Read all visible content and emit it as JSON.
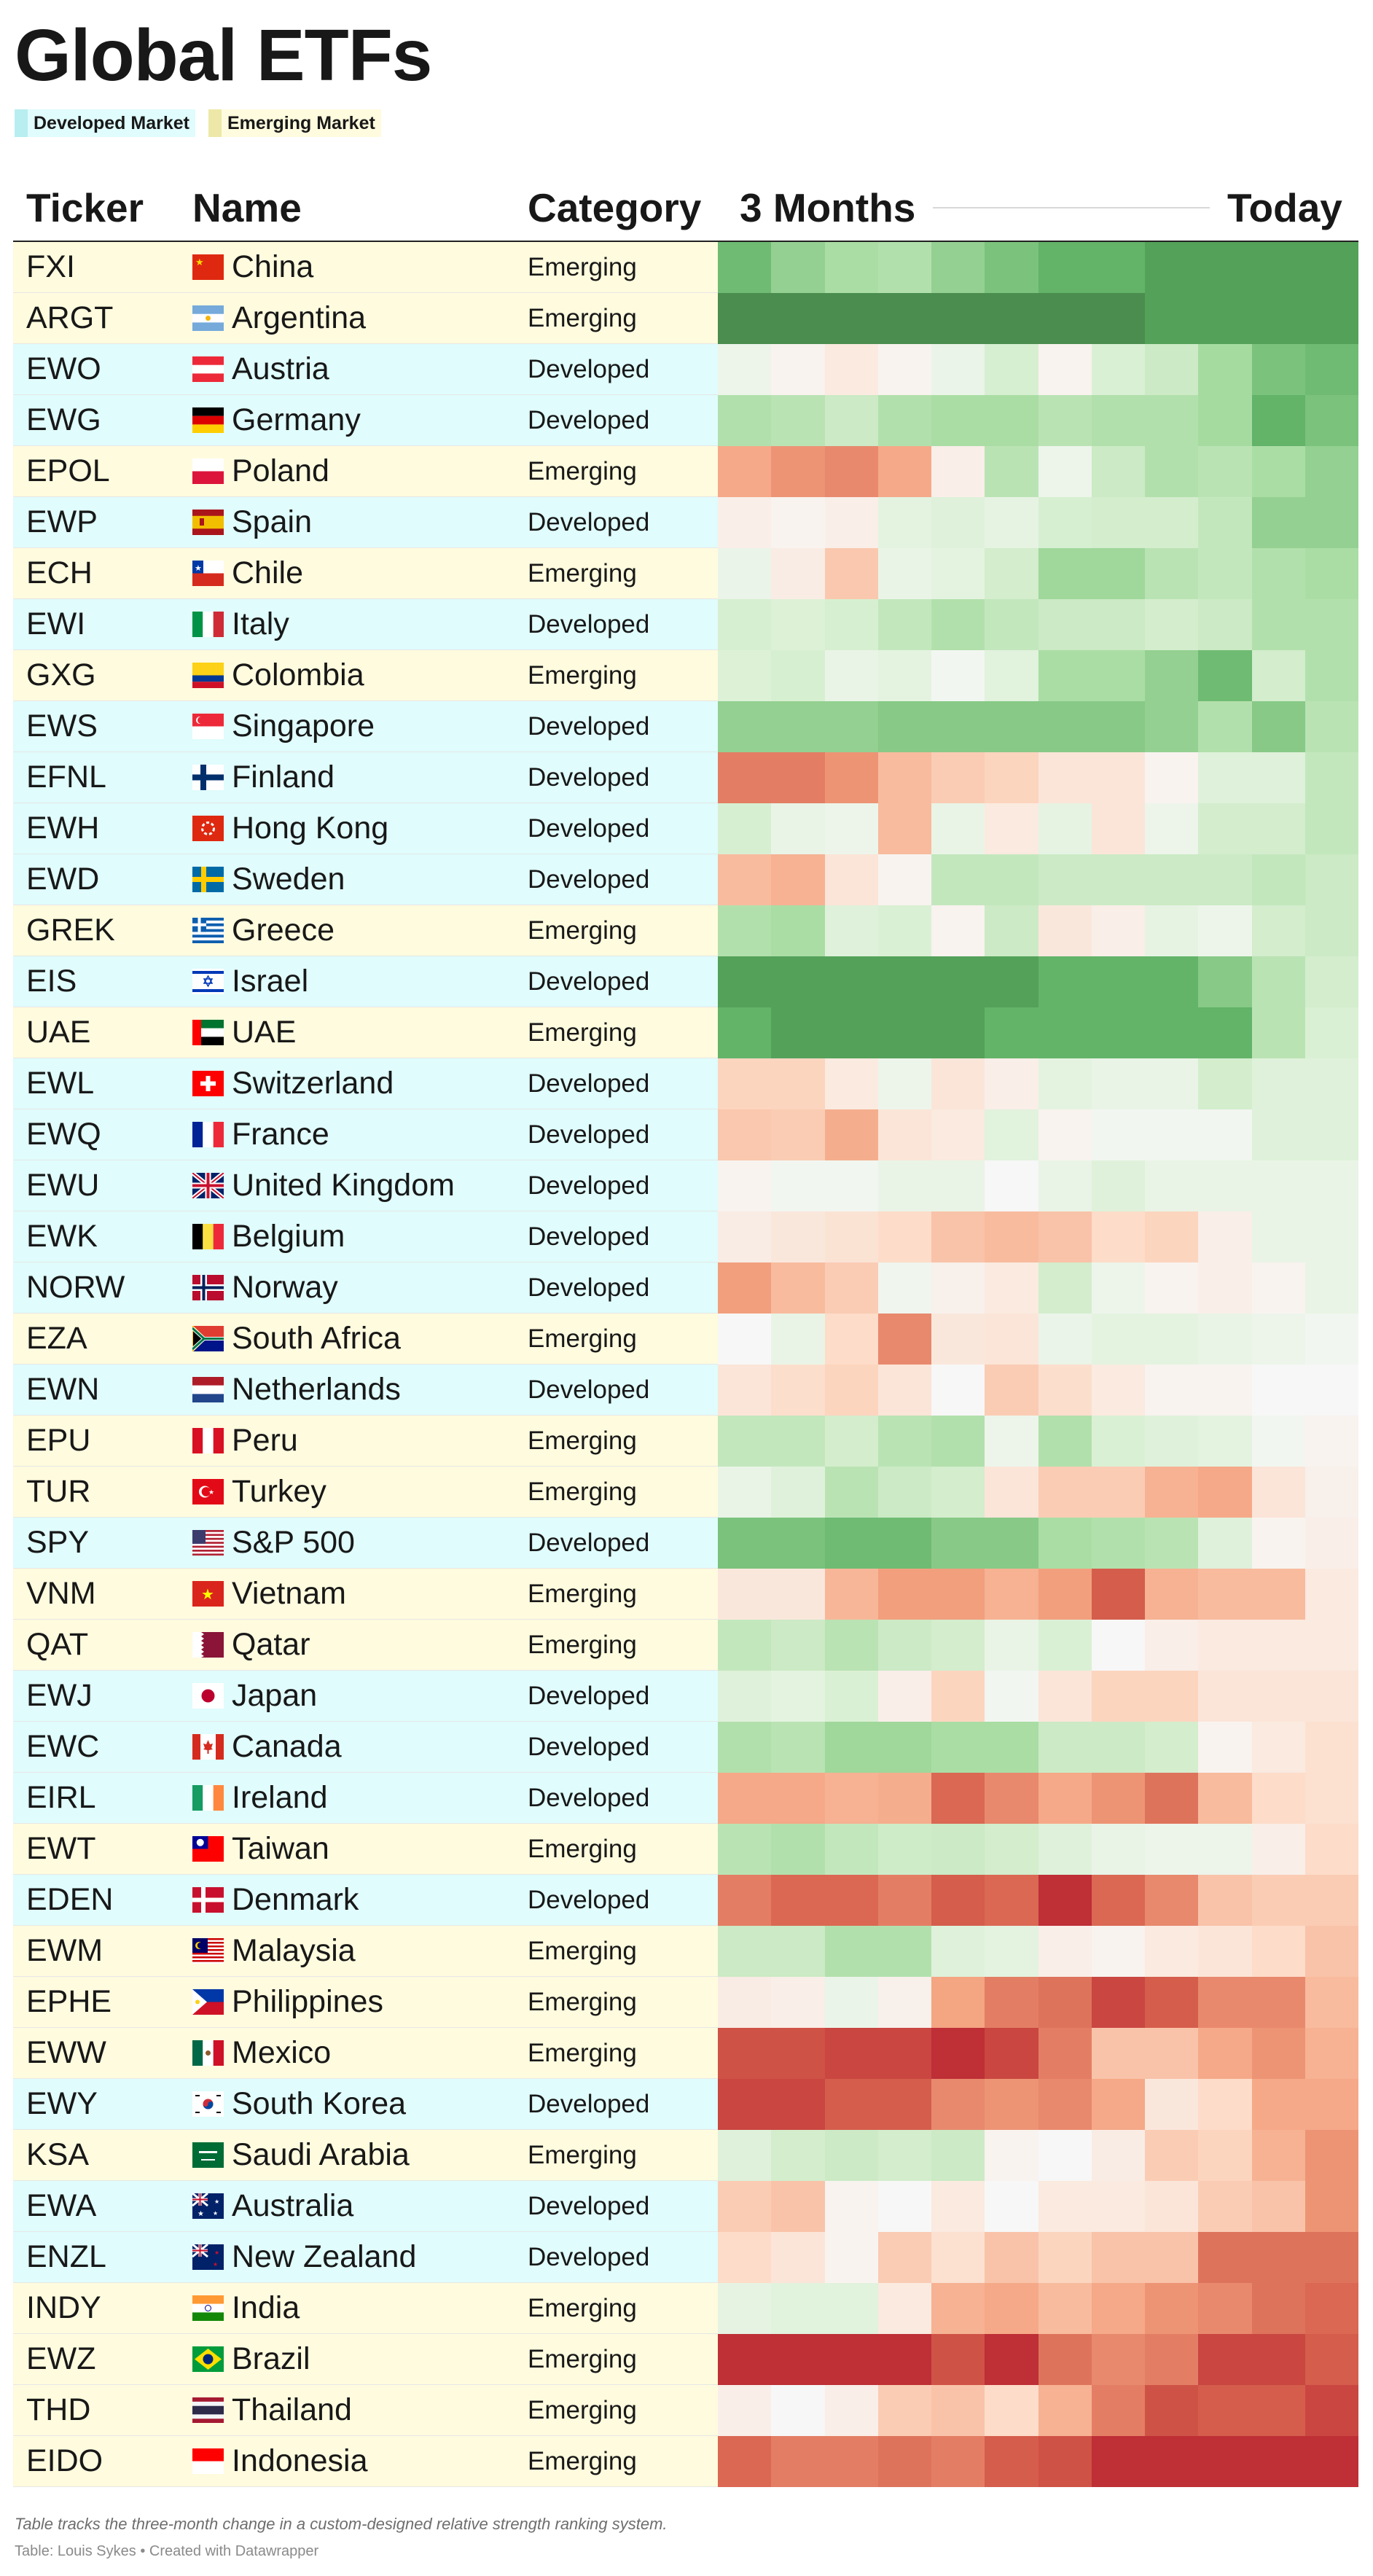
{
  "title": "Global ETFs",
  "legend": [
    {
      "label": "Developed Market",
      "color": "#b8eef0",
      "bg": "#e0fcfc"
    },
    {
      "label": "Emerging Market",
      "color": "#eee8a8",
      "bg": "#fffbde"
    }
  ],
  "columns": {
    "ticker": "Ticker",
    "name": "Name",
    "category": "Category",
    "start": "3 Months",
    "end": "Today"
  },
  "colors": {
    "developed_bg": "#e0fcfc",
    "emerging_bg": "#fffbde"
  },
  "color_scale": [
    "#b2182b",
    "#d6604d",
    "#f4a582",
    "#fddbc7",
    "#f7f7f7",
    "#d9f0d3",
    "#a6dba0",
    "#5aae61",
    "#3d6e3f"
  ],
  "chart_data": {
    "type": "heatmap",
    "title": "Global ETFs",
    "xlabel": "3 Months → Today",
    "columns_count": 12,
    "rows": [
      {
        "ticker": "FXI",
        "name": "China",
        "category": "Emerging",
        "flag": "cn",
        "values": [
          0.84,
          0.78,
          0.74,
          0.72,
          0.78,
          0.82,
          0.86,
          0.86,
          0.9,
          0.9,
          0.9,
          0.9
        ]
      },
      {
        "ticker": "ARGT",
        "name": "Argentina",
        "category": "Emerging",
        "flag": "ar",
        "values": [
          0.94,
          0.94,
          0.94,
          0.94,
          0.94,
          0.94,
          0.94,
          0.94,
          0.9,
          0.9,
          0.9,
          0.9
        ]
      },
      {
        "ticker": "EWO",
        "name": "Austria",
        "category": "Developed",
        "flag": "at",
        "values": [
          0.54,
          0.48,
          0.44,
          0.48,
          0.55,
          0.63,
          0.48,
          0.62,
          0.66,
          0.75,
          0.82,
          0.84
        ]
      },
      {
        "ticker": "EWG",
        "name": "Germany",
        "category": "Developed",
        "flag": "de",
        "values": [
          0.72,
          0.7,
          0.66,
          0.72,
          0.74,
          0.74,
          0.7,
          0.72,
          0.72,
          0.75,
          0.86,
          0.82
        ]
      },
      {
        "ticker": "EPOL",
        "name": "Poland",
        "category": "Emerging",
        "flag": "pl",
        "values": [
          0.26,
          0.22,
          0.2,
          0.26,
          0.46,
          0.7,
          0.54,
          0.66,
          0.72,
          0.7,
          0.74,
          0.78
        ]
      },
      {
        "ticker": "EWP",
        "name": "Spain",
        "category": "Developed",
        "flag": "es",
        "values": [
          0.46,
          0.48,
          0.46,
          0.58,
          0.6,
          0.57,
          0.63,
          0.64,
          0.64,
          0.68,
          0.78,
          0.78
        ]
      },
      {
        "ticker": "ECH",
        "name": "Chile",
        "category": "Emerging",
        "flag": "cl",
        "values": [
          0.55,
          0.45,
          0.33,
          0.56,
          0.58,
          0.64,
          0.76,
          0.76,
          0.7,
          0.68,
          0.72,
          0.74
        ]
      },
      {
        "ticker": "EWI",
        "name": "Italy",
        "category": "Developed",
        "flag": "it",
        "values": [
          0.63,
          0.61,
          0.63,
          0.68,
          0.72,
          0.68,
          0.66,
          0.66,
          0.64,
          0.66,
          0.72,
          0.72
        ]
      },
      {
        "ticker": "GXG",
        "name": "Colombia",
        "category": "Emerging",
        "flag": "co",
        "values": [
          0.61,
          0.63,
          0.56,
          0.58,
          0.52,
          0.59,
          0.74,
          0.74,
          0.78,
          0.84,
          0.64,
          0.72
        ]
      },
      {
        "ticker": "EWS",
        "name": "Singapore",
        "category": "Developed",
        "flag": "sg",
        "values": [
          0.78,
          0.78,
          0.78,
          0.8,
          0.8,
          0.8,
          0.8,
          0.8,
          0.78,
          0.72,
          0.8,
          0.7
        ]
      },
      {
        "ticker": "EFNL",
        "name": "Finland",
        "category": "Developed",
        "flag": "fi",
        "values": [
          0.18,
          0.18,
          0.22,
          0.3,
          0.34,
          0.36,
          0.42,
          0.42,
          0.48,
          0.6,
          0.6,
          0.68
        ]
      },
      {
        "ticker": "EWH",
        "name": "Hong Kong",
        "category": "Developed",
        "flag": "hk",
        "values": [
          0.63,
          0.56,
          0.54,
          0.3,
          0.56,
          0.44,
          0.57,
          0.42,
          0.54,
          0.64,
          0.64,
          0.68
        ]
      },
      {
        "ticker": "EWD",
        "name": "Sweden",
        "category": "Developed",
        "flag": "se",
        "values": [
          0.3,
          0.28,
          0.42,
          0.48,
          0.68,
          0.68,
          0.66,
          0.66,
          0.66,
          0.66,
          0.68,
          0.66
        ]
      },
      {
        "ticker": "GREK",
        "name": "Greece",
        "category": "Emerging",
        "flag": "gr",
        "values": [
          0.72,
          0.74,
          0.6,
          0.62,
          0.48,
          0.66,
          0.43,
          0.46,
          0.57,
          0.54,
          0.64,
          0.66
        ]
      },
      {
        "ticker": "EIS",
        "name": "Israel",
        "category": "Developed",
        "flag": "il",
        "values": [
          0.9,
          0.9,
          0.9,
          0.9,
          0.9,
          0.9,
          0.86,
          0.86,
          0.86,
          0.8,
          0.7,
          0.64
        ]
      },
      {
        "ticker": "UAE",
        "name": "UAE",
        "category": "Emerging",
        "flag": "ae",
        "values": [
          0.86,
          0.9,
          0.9,
          0.9,
          0.9,
          0.86,
          0.86,
          0.86,
          0.86,
          0.86,
          0.7,
          0.62
        ]
      },
      {
        "ticker": "EWL",
        "name": "Switzerland",
        "category": "Developed",
        "flag": "ch",
        "values": [
          0.36,
          0.36,
          0.44,
          0.54,
          0.42,
          0.46,
          0.58,
          0.56,
          0.56,
          0.64,
          0.6,
          0.6
        ]
      },
      {
        "ticker": "EWQ",
        "name": "France",
        "category": "Developed",
        "flag": "fr",
        "values": [
          0.33,
          0.34,
          0.27,
          0.42,
          0.44,
          0.59,
          0.48,
          0.52,
          0.52,
          0.52,
          0.6,
          0.6
        ]
      },
      {
        "ticker": "EWU",
        "name": "United Kingdom",
        "category": "Developed",
        "flag": "gb",
        "values": [
          0.48,
          0.52,
          0.52,
          0.56,
          0.56,
          0.5,
          0.56,
          0.6,
          0.56,
          0.56,
          0.56,
          0.56
        ]
      },
      {
        "ticker": "EWK",
        "name": "Belgium",
        "category": "Developed",
        "flag": "be",
        "values": [
          0.45,
          0.43,
          0.41,
          0.38,
          0.32,
          0.3,
          0.32,
          0.38,
          0.36,
          0.46,
          0.56,
          0.56
        ]
      },
      {
        "ticker": "NORW",
        "name": "Norway",
        "category": "Developed",
        "flag": "no",
        "values": [
          0.24,
          0.3,
          0.34,
          0.53,
          0.47,
          0.44,
          0.64,
          0.54,
          0.48,
          0.46,
          0.48,
          0.56
        ]
      },
      {
        "ticker": "EZA",
        "name": "South Africa",
        "category": "Emerging",
        "flag": "za",
        "values": [
          0.5,
          0.56,
          0.38,
          0.2,
          0.43,
          0.42,
          0.55,
          0.58,
          0.58,
          0.56,
          0.54,
          0.52
        ]
      },
      {
        "ticker": "EWN",
        "name": "Netherlands",
        "category": "Developed",
        "flag": "nl",
        "values": [
          0.42,
          0.39,
          0.36,
          0.42,
          0.5,
          0.34,
          0.39,
          0.44,
          0.48,
          0.48,
          0.5,
          0.5
        ]
      },
      {
        "ticker": "EPU",
        "name": "Peru",
        "category": "Emerging",
        "flag": "pe",
        "values": [
          0.68,
          0.68,
          0.64,
          0.7,
          0.72,
          0.54,
          0.72,
          0.62,
          0.6,
          0.58,
          0.52,
          0.48
        ]
      },
      {
        "ticker": "TUR",
        "name": "Turkey",
        "category": "Emerging",
        "flag": "tr",
        "values": [
          0.56,
          0.6,
          0.7,
          0.66,
          0.64,
          0.42,
          0.34,
          0.34,
          0.28,
          0.26,
          0.42,
          0.47
        ]
      },
      {
        "ticker": "SPY",
        "name": "S&P 500",
        "category": "Developed",
        "flag": "us",
        "values": [
          0.82,
          0.82,
          0.84,
          0.84,
          0.8,
          0.8,
          0.74,
          0.72,
          0.7,
          0.6,
          0.48,
          0.46
        ]
      },
      {
        "ticker": "VNM",
        "name": "Vietnam",
        "category": "Emerging",
        "flag": "vn",
        "values": [
          0.43,
          0.43,
          0.29,
          0.24,
          0.24,
          0.28,
          0.24,
          0.12,
          0.28,
          0.3,
          0.3,
          0.44
        ]
      },
      {
        "ticker": "QAT",
        "name": "Qatar",
        "category": "Emerging",
        "flag": "qa",
        "values": [
          0.68,
          0.66,
          0.7,
          0.66,
          0.64,
          0.56,
          0.62,
          0.5,
          0.46,
          0.44,
          0.44,
          0.44
        ]
      },
      {
        "ticker": "EWJ",
        "name": "Japan",
        "category": "Developed",
        "flag": "jp",
        "values": [
          0.6,
          0.58,
          0.62,
          0.46,
          0.36,
          0.52,
          0.42,
          0.36,
          0.36,
          0.42,
          0.42,
          0.42
        ]
      },
      {
        "ticker": "EWC",
        "name": "Canada",
        "category": "Developed",
        "flag": "ca",
        "values": [
          0.72,
          0.7,
          0.76,
          0.76,
          0.74,
          0.74,
          0.66,
          0.66,
          0.64,
          0.48,
          0.44,
          0.4
        ]
      },
      {
        "ticker": "EIRL",
        "name": "Ireland",
        "category": "Developed",
        "flag": "ie",
        "values": [
          0.26,
          0.26,
          0.28,
          0.27,
          0.14,
          0.2,
          0.26,
          0.22,
          0.16,
          0.3,
          0.38,
          0.4
        ]
      },
      {
        "ticker": "EWT",
        "name": "Taiwan",
        "category": "Emerging",
        "flag": "tw",
        "values": [
          0.7,
          0.72,
          0.68,
          0.65,
          0.66,
          0.64,
          0.6,
          0.56,
          0.54,
          0.54,
          0.46,
          0.38
        ]
      },
      {
        "ticker": "EDEN",
        "name": "Denmark",
        "category": "Developed",
        "flag": "dk",
        "values": [
          0.18,
          0.14,
          0.14,
          0.18,
          0.12,
          0.14,
          0.04,
          0.14,
          0.2,
          0.32,
          0.34,
          0.34
        ]
      },
      {
        "ticker": "EWM",
        "name": "Malaysia",
        "category": "Emerging",
        "flag": "my",
        "values": [
          0.66,
          0.66,
          0.72,
          0.72,
          0.6,
          0.58,
          0.46,
          0.48,
          0.44,
          0.42,
          0.38,
          0.32
        ]
      },
      {
        "ticker": "EPHE",
        "name": "Philippines",
        "category": "Emerging",
        "flag": "ph",
        "values": [
          0.45,
          0.46,
          0.55,
          0.47,
          0.25,
          0.18,
          0.16,
          0.08,
          0.12,
          0.2,
          0.2,
          0.3
        ]
      },
      {
        "ticker": "EWW",
        "name": "Mexico",
        "category": "Emerging",
        "flag": "mx",
        "values": [
          0.1,
          0.1,
          0.08,
          0.08,
          0.04,
          0.08,
          0.18,
          0.32,
          0.32,
          0.26,
          0.22,
          0.28
        ]
      },
      {
        "ticker": "EWY",
        "name": "South Korea",
        "category": "Developed",
        "flag": "kr",
        "values": [
          0.08,
          0.08,
          0.12,
          0.12,
          0.2,
          0.22,
          0.2,
          0.26,
          0.43,
          0.38,
          0.26,
          0.26
        ]
      },
      {
        "ticker": "KSA",
        "name": "Saudi Arabia",
        "category": "Emerging",
        "flag": "sa",
        "values": [
          0.6,
          0.64,
          0.66,
          0.64,
          0.66,
          0.48,
          0.5,
          0.45,
          0.34,
          0.36,
          0.28,
          0.22
        ]
      },
      {
        "ticker": "EWA",
        "name": "Australia",
        "category": "Developed",
        "flag": "au",
        "values": [
          0.34,
          0.32,
          0.48,
          0.5,
          0.44,
          0.5,
          0.44,
          0.44,
          0.42,
          0.34,
          0.32,
          0.22
        ]
      },
      {
        "ticker": "ENZL",
        "name": "New Zealand",
        "category": "Developed",
        "flag": "nz",
        "values": [
          0.38,
          0.42,
          0.48,
          0.34,
          0.4,
          0.32,
          0.36,
          0.32,
          0.32,
          0.16,
          0.16,
          0.16
        ]
      },
      {
        "ticker": "INDY",
        "name": "India",
        "category": "Emerging",
        "flag": "in",
        "values": [
          0.57,
          0.59,
          0.59,
          0.44,
          0.28,
          0.26,
          0.3,
          0.26,
          0.22,
          0.2,
          0.16,
          0.14
        ]
      },
      {
        "ticker": "EWZ",
        "name": "Brazil",
        "category": "Emerging",
        "flag": "br",
        "values": [
          0.04,
          0.04,
          0.04,
          0.04,
          0.1,
          0.04,
          0.16,
          0.2,
          0.18,
          0.08,
          0.08,
          0.12
        ]
      },
      {
        "ticker": "THD",
        "name": "Thailand",
        "category": "Emerging",
        "flag": "th",
        "values": [
          0.46,
          0.5,
          0.46,
          0.34,
          0.32,
          0.38,
          0.28,
          0.18,
          0.1,
          0.12,
          0.12,
          0.08
        ]
      },
      {
        "ticker": "EIDO",
        "name": "Indonesia",
        "category": "Emerging",
        "flag": "id",
        "values": [
          0.14,
          0.18,
          0.18,
          0.16,
          0.18,
          0.12,
          0.1,
          0.04,
          0.04,
          0.04,
          0.04,
          0.04
        ]
      }
    ]
  },
  "footnote": "Table tracks the three-month change in a custom-designed relative strength ranking system.",
  "source": "Table: Louis Sykes • Created with Datawrapper"
}
